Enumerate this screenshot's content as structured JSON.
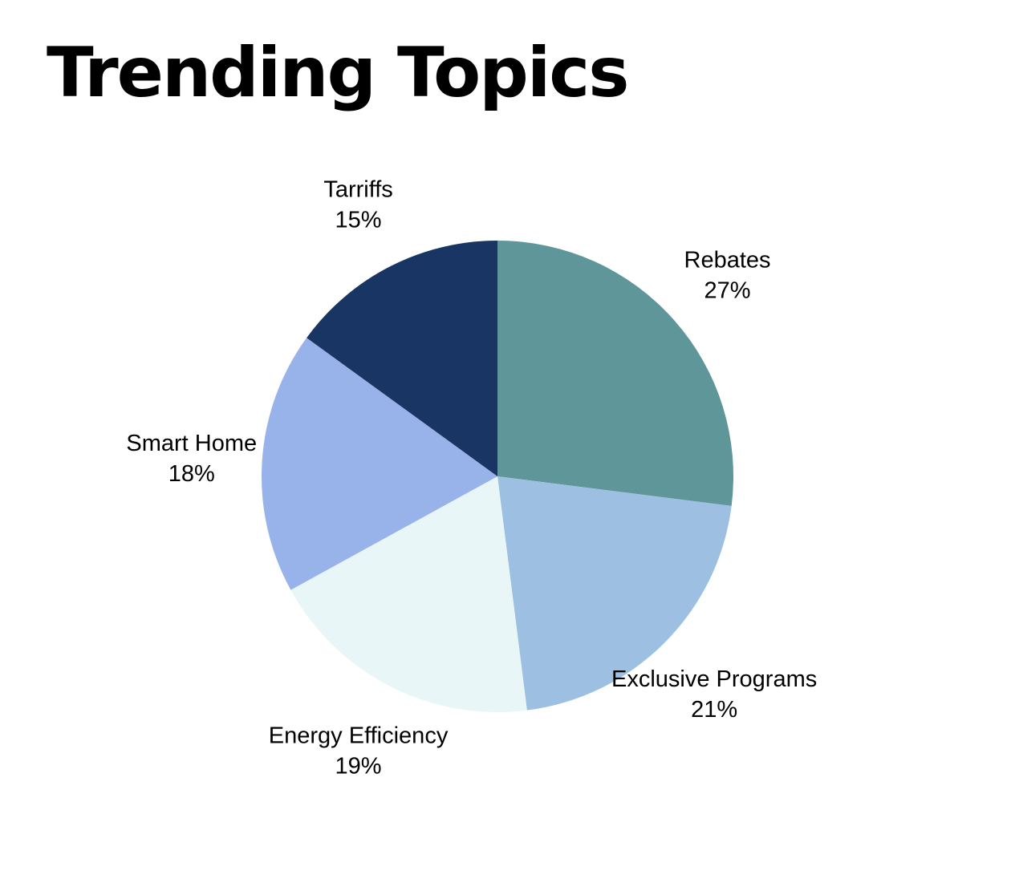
{
  "chart_data": {
    "type": "pie",
    "title": "Trending Topics",
    "start_angle_deg": 0,
    "direction": "clockwise",
    "slices": [
      {
        "label": "Rebates",
        "value": 27,
        "display": "27%",
        "color": "#5f9699"
      },
      {
        "label": "Exclusive Programs",
        "value": 21,
        "display": "21%",
        "color": "#9dc0e2"
      },
      {
        "label": "Energy Efficiency",
        "value": 19,
        "display": "19%",
        "color": "#e8f6f8"
      },
      {
        "label": "Smart Home",
        "value": 18,
        "display": "18%",
        "color": "#98b3ea"
      },
      {
        "label": "Tarriffs",
        "value": 15,
        "display": "15%",
        "color": "#183563"
      }
    ]
  }
}
